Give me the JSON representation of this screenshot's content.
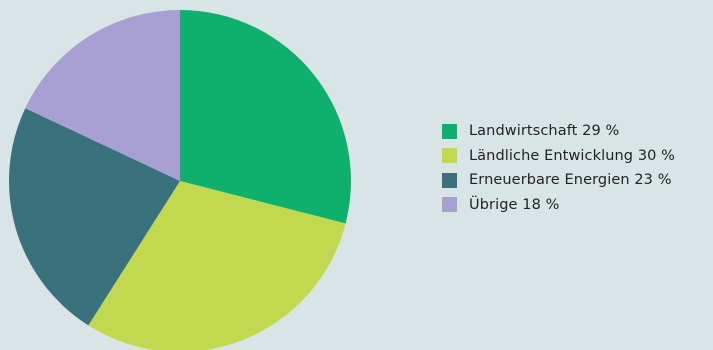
{
  "chart_data": {
    "type": "pie",
    "categories": [
      "Landwirtschaft",
      "Ländliche Entwicklung",
      "Erneuerbare Energien",
      "Übrige"
    ],
    "values": [
      29,
      30,
      23,
      18
    ],
    "unit": "%",
    "colors": [
      "#0fb06e",
      "#c2d94f",
      "#39727d",
      "#a8a0d2"
    ],
    "start_angle_deg": 0,
    "direction": "clockwise",
    "legend_position": "right"
  },
  "legend": {
    "items": [
      {
        "label": "Landwirtschaft 29 %",
        "color": "#0fb06e"
      },
      {
        "label": "Ländliche Entwicklung 30 %",
        "color": "#c2d94f"
      },
      {
        "label": "Erneuerbare Energien 23 %",
        "color": "#39727d"
      },
      {
        "label": "Übrige 18 %",
        "color": "#a8a0d2"
      }
    ]
  }
}
